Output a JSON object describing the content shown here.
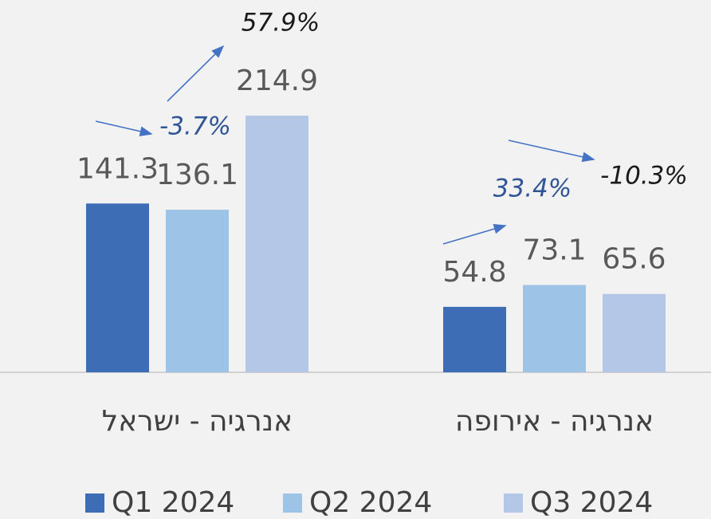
{
  "chart_data": {
    "type": "bar",
    "categories": [
      "אנרגיה - ישראל",
      "אנרגיה - אירופה"
    ],
    "series": [
      {
        "name": "Q1 2024",
        "color": "#3d6db5",
        "values": [
          141.3,
          54.8
        ]
      },
      {
        "name": "Q2 2024",
        "color": "#9dc3e6",
        "values": [
          136.1,
          73.1
        ]
      },
      {
        "name": "Q3 2024",
        "color": "#b4c7e7",
        "values": [
          214.9,
          65.6
        ]
      }
    ],
    "annotations": [
      {
        "text": "-3.7%",
        "color": "#2f5597"
      },
      {
        "text": "57.9%",
        "color": "#1a1a1a"
      },
      {
        "text": "33.4%",
        "color": "#2f5597"
      },
      {
        "text": "-10.3%",
        "color": "#1a1a1a"
      }
    ],
    "legend": "bottom"
  }
}
